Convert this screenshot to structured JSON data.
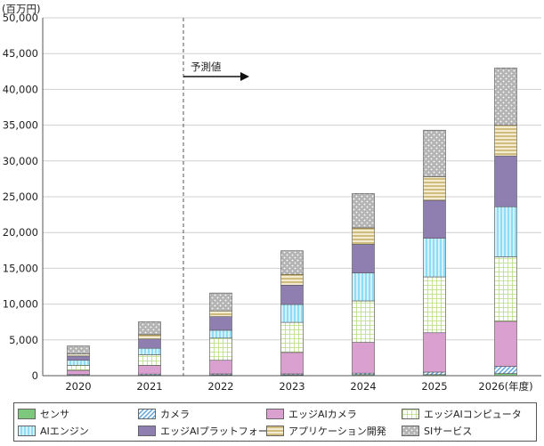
{
  "chart_data": {
    "type": "bar",
    "stacked": true,
    "unit_label": "(百万円)",
    "year_unit": "(年度)",
    "categories": [
      "2020",
      "2021",
      "2022",
      "2023",
      "2024",
      "2025",
      "2026"
    ],
    "ylim": [
      0,
      50000
    ],
    "yticks": [
      "0",
      "5,000",
      "10,000",
      "15,000",
      "20,000",
      "25,000",
      "30,000",
      "35,000",
      "40,000",
      "45,000",
      "50,000"
    ],
    "grid": true,
    "forecast": {
      "label": "予測値",
      "start_between": [
        "2021",
        "2022"
      ]
    },
    "series": [
      {
        "name": "センサ",
        "color": "#7dc87d",
        "pattern": "solid",
        "values": [
          50,
          80,
          100,
          100,
          150,
          150,
          300
        ]
      },
      {
        "name": "カメラ",
        "color": "#5aa0dc",
        "pattern": "diagonal",
        "values": [
          100,
          150,
          150,
          150,
          200,
          350,
          1000
        ]
      },
      {
        "name": "エッジAIカメラ",
        "color": "#d9a0d0",
        "pattern": "solid",
        "values": [
          600,
          1200,
          1900,
          3000,
          4300,
          5500,
          6300
        ]
      },
      {
        "name": "エッジAIコンピュータ",
        "color": "#bde08a",
        "pattern": "grid",
        "values": [
          700,
          1500,
          3100,
          4200,
          5800,
          7800,
          9000
        ]
      },
      {
        "name": "AIエンジン",
        "color": "#8fdcf5",
        "pattern": "vertical",
        "values": [
          700,
          900,
          1100,
          2500,
          3900,
          5400,
          7000
        ]
      },
      {
        "name": "エッジAIプラットフォーム",
        "color": "#8f7fb0",
        "pattern": "solid",
        "values": [
          600,
          1300,
          1900,
          2700,
          4000,
          5300,
          7100
        ]
      },
      {
        "name": "アプリケーション開発",
        "color": "#e0cc8c",
        "pattern": "horizontal",
        "values": [
          300,
          600,
          800,
          1500,
          2300,
          3300,
          4300
        ]
      },
      {
        "name": "SIサービス",
        "color": "#b4b4b4",
        "pattern": "dots",
        "values": [
          1100,
          1800,
          2500,
          3300,
          4800,
          6500,
          8000
        ]
      }
    ]
  }
}
